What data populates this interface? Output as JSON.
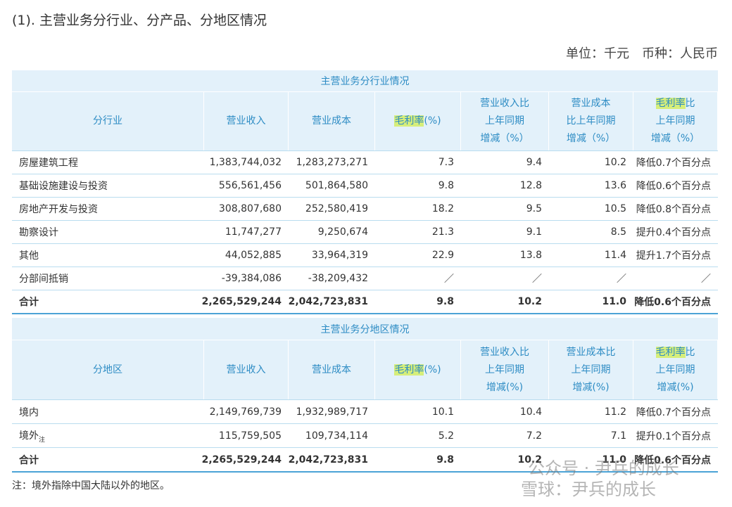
{
  "title": "(1). 主营业务分行业、分产品、分地区情况",
  "unit_note": "单位：千元　币种：人民币",
  "tables": [
    {
      "caption": "主营业务分行业情况",
      "header": [
        [
          "分行业"
        ],
        [
          "营业收入"
        ],
        [
          "营业成本"
        ],
        [
          {
            "highlight": "毛利率",
            "text": "(%)"
          }
        ],
        [
          "营业收入比",
          "上年同期",
          "增减（%）"
        ],
        [
          "营业成本",
          "比上年同期",
          "增减（%）"
        ],
        [
          {
            "highlight": "毛利率",
            "text": "比"
          },
          "上年同期",
          "增减（%）"
        ]
      ],
      "rows": [
        [
          "房屋建筑工程",
          "1,383,744,032",
          "1,283,273,271",
          "7.3",
          "9.4",
          "10.2",
          "降低0.7个百分点"
        ],
        [
          "基础设施建设与投资",
          "556,561,456",
          "501,864,580",
          "9.8",
          "12.8",
          "13.6",
          "降低0.6个百分点"
        ],
        [
          "房地产开发与投资",
          "308,807,680",
          "252,580,419",
          "18.2",
          "9.5",
          "10.5",
          "降低0.8个百分点"
        ],
        [
          "勘察设计",
          "11,747,277",
          "9,250,674",
          "21.3",
          "9.1",
          "8.5",
          "提升0.4个百分点"
        ],
        [
          "其他",
          "44,052,885",
          "33,964,319",
          "22.9",
          "13.8",
          "11.4",
          "提升1.7个百分点"
        ],
        [
          "分部间抵销",
          "-39,384,086",
          "-38,209,432",
          "／",
          "／",
          "／",
          "／"
        ]
      ],
      "total": [
        "合计",
        "2,265,529,244",
        "2,042,723,831",
        "9.8",
        "10.2",
        "11.0",
        "降低0.6个百分点"
      ]
    },
    {
      "caption": "主营业务分地区情况",
      "header": [
        [
          "分地区"
        ],
        [
          "营业收入"
        ],
        [
          "营业成本"
        ],
        [
          {
            "highlight": "毛利率",
            "text": "(%)"
          }
        ],
        [
          "营业收入比",
          "上年同期",
          "增减(%)"
        ],
        [
          "营业成本比",
          "上年同期",
          "增减(%)"
        ],
        [
          {
            "highlight": "毛利率",
            "text": "比"
          },
          "上年同期",
          "增减(%)"
        ]
      ],
      "rows": [
        [
          "境内",
          "2,149,769,739",
          "1,932,989,717",
          "10.1",
          "10.4",
          "11.2",
          "降低0.7个百分点"
        ],
        [
          {
            "text": "境外",
            "note": "注"
          },
          "115,759,505",
          "109,734,114",
          "5.2",
          "7.2",
          "7.1",
          "提升0.1个百分点"
        ]
      ],
      "total": [
        "合计",
        "2,265,529,244",
        "2,042,723,831",
        "9.8",
        "10.2",
        "11.0",
        "降低0.6个百分点"
      ]
    }
  ],
  "footnote": "注：境外指除中国大陆以外的地区。",
  "watermark": [
    "公众号 · 尹兵的成长",
    "雪球：尹兵的成长"
  ]
}
